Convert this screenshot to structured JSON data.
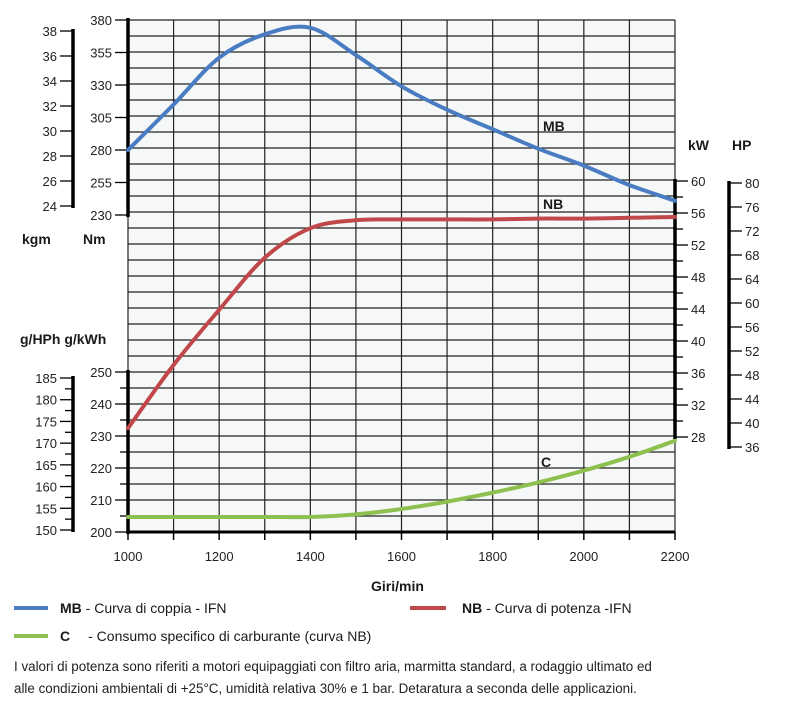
{
  "chart_data": {
    "type": "line",
    "xlabel": "Giri/min",
    "x_ticks": [
      1000,
      1200,
      1400,
      1600,
      1800,
      2000,
      2200
    ],
    "xlim": [
      1000,
      2200
    ],
    "grid": true,
    "axes": {
      "torque_nm": {
        "label": "Nm",
        "ticks": [
          230,
          255,
          280,
          305,
          330,
          355,
          380
        ],
        "range": [
          230,
          380
        ]
      },
      "torque_kgm": {
        "label": "kgm",
        "ticks": [
          24,
          26,
          28,
          30,
          32,
          34,
          36,
          38
        ],
        "range": [
          24,
          38
        ]
      },
      "power_kw": {
        "label": "kW",
        "ticks": [
          28,
          32,
          36,
          40,
          44,
          48,
          52,
          56,
          60
        ],
        "range": [
          28,
          60
        ]
      },
      "power_hp": {
        "label": "HP",
        "ticks": [
          36,
          40,
          44,
          48,
          52,
          56,
          60,
          64,
          68,
          72,
          76,
          80
        ],
        "range": [
          36,
          80
        ]
      },
      "fuel_gkwh": {
        "label": "g/kWh",
        "ticks": [
          200,
          210,
          220,
          230,
          240,
          250
        ],
        "range": [
          200,
          250
        ]
      },
      "fuel_ghph": {
        "label": "g/HPh",
        "ticks": [
          150,
          155,
          160,
          165,
          170,
          175,
          180,
          185
        ],
        "range": [
          150,
          185
        ]
      }
    },
    "x": [
      1000,
      1100,
      1200,
      1300,
      1400,
      1500,
      1600,
      1700,
      1800,
      1900,
      2000,
      2100,
      2200
    ],
    "series": [
      {
        "name": "MB",
        "axis": "torque_nm",
        "color": "#4a7cc2",
        "values": [
          280,
          315,
          351,
          369,
          374,
          353,
          329,
          311,
          296,
          281,
          268,
          253,
          241
        ]
      },
      {
        "name": "NB",
        "axis": "power_kw",
        "color": "#c0484a",
        "values": [
          29.1,
          37.0,
          43.9,
          50.4,
          54.1,
          55.1,
          55.2,
          55.2,
          55.2,
          55.3,
          55.3,
          55.4,
          55.5
        ]
      },
      {
        "name": "C",
        "axis": "fuel_gkwh",
        "color": "#8dc04f",
        "values": [
          204.7,
          204.7,
          204.7,
          204.7,
          204.7,
          205.5,
          207.2,
          209.5,
          212.3,
          215.5,
          219.2,
          223.5,
          228.5
        ]
      }
    ]
  },
  "legend": [
    {
      "code": "MB",
      "text": "- Curva di coppia - IFN",
      "color": "#4a7cc2"
    },
    {
      "code": "NB",
      "text": "- Curva di potenza  -IFN",
      "color": "#c0484a"
    },
    {
      "code": "C",
      "text": "- Consumo specifico di carburante (curva NB)",
      "color": "#8dc04f"
    }
  ],
  "axis_titles": {
    "kgm": "kgm",
    "nm": "Nm",
    "fuel": "g/HPh g/kWh",
    "kw": "kW",
    "hp": "HP"
  },
  "note": [
    "I valori di potenza sono riferiti a motori equipaggiati con filtro aria, marmitta standard, a rodaggio ultimato ed",
    "alle condizioni ambientali di +25°C, umidità relativa 30% e 1 bar.  Detaratura a seconda delle applicazioni."
  ]
}
